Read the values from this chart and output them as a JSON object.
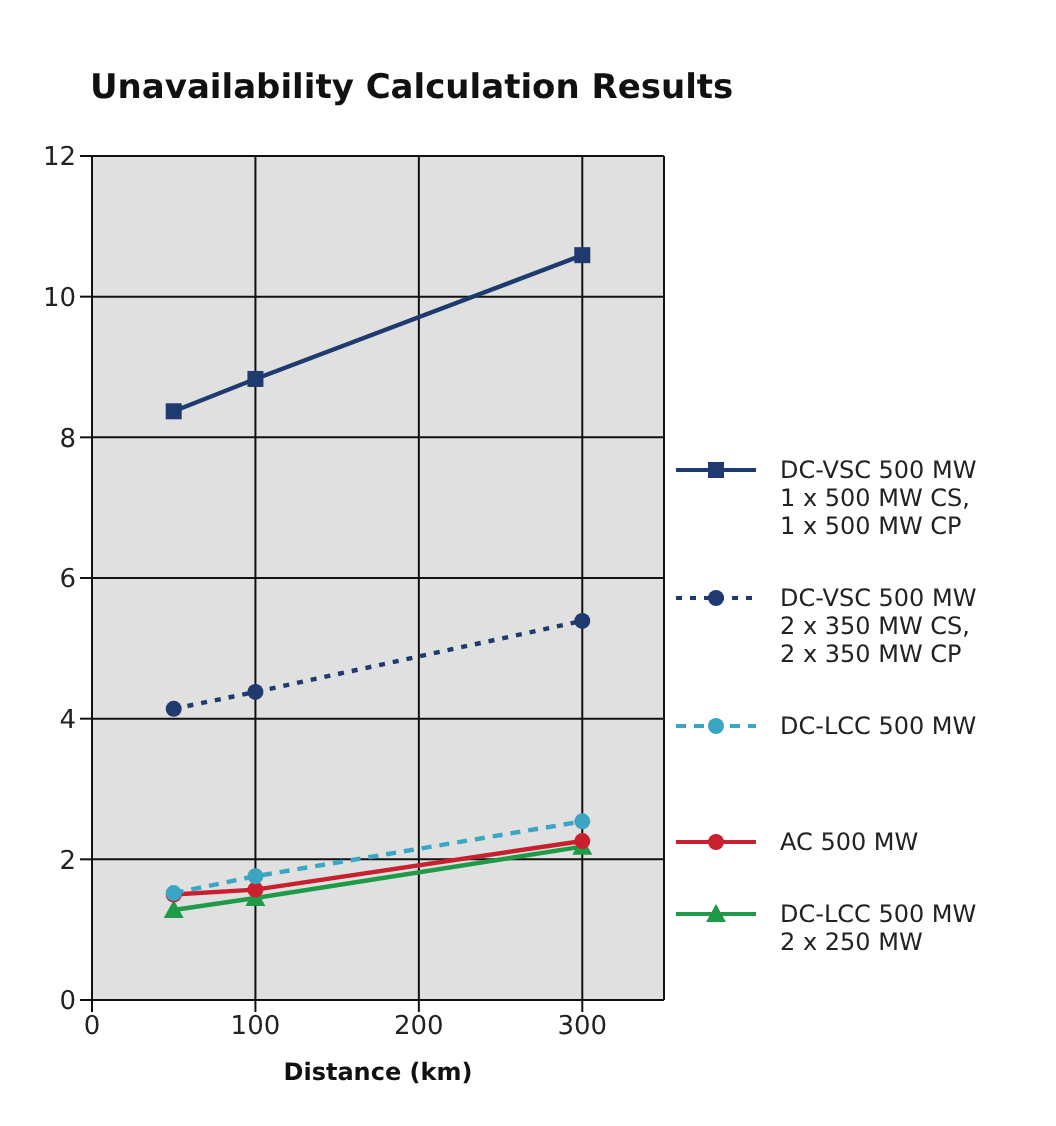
{
  "chart_data": {
    "type": "line",
    "title": "Unavailability Calculation Results",
    "xlabel": "Distance (km)",
    "x": [
      50,
      100,
      300
    ],
    "series": [
      {
        "name": "DC-VSC 500 MW\n1 x 500 MW CS,\n1 x 500 MW CP",
        "color": "#1f3a6e",
        "marker": "square",
        "line_style": "solid",
        "values": [
          8.37,
          8.83,
          10.59
        ]
      },
      {
        "name": "DC-VSC 500 MW\n2 x 350 MW CS,\n2 x 350 MW CP",
        "color": "#1f3a6e",
        "marker": "circle",
        "line_style": "dotted",
        "values": [
          4.14,
          4.38,
          5.39
        ]
      },
      {
        "name": "DC-LCC 500 MW",
        "color": "#3aa6c4",
        "marker": "circle",
        "line_style": "dashed",
        "values": [
          1.52,
          1.76,
          2.54
        ]
      },
      {
        "name": "AC 500 MW",
        "color": "#c8202f",
        "marker": "circle",
        "line_style": "solid",
        "values": [
          1.5,
          1.57,
          2.26
        ]
      },
      {
        "name": "DC-LCC 500 MW\n2 x 250 MW",
        "color": "#1e9a48",
        "marker": "triangle",
        "line_style": "solid",
        "values": [
          1.28,
          1.45,
          2.18
        ]
      }
    ],
    "xlim": [
      0,
      350
    ],
    "xticks": [
      0,
      100,
      200,
      300
    ],
    "ylim": [
      0,
      12
    ],
    "yticks": [
      0,
      2,
      4,
      6,
      8,
      10,
      12
    ],
    "grid": true,
    "legend": "right"
  }
}
